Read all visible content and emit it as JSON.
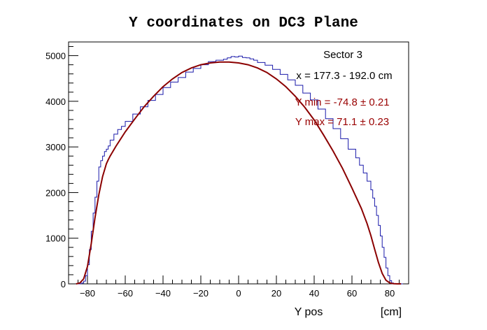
{
  "chart_data": {
    "type": "line",
    "title": "Y coordinates on DC3 Plane",
    "xlabel": "Y pos",
    "xunit": "[cm]",
    "ylabel": "",
    "xlim": [
      -90,
      90
    ],
    "ylim": [
      0,
      5300
    ],
    "x_ticks": [
      -80,
      -60,
      -40,
      -20,
      0,
      20,
      40,
      60,
      80
    ],
    "y_ticks": [
      0,
      1000,
      2000,
      3000,
      4000,
      5000
    ],
    "grid": false,
    "annotations": {
      "sector": "Sector 3",
      "x_range": "x = 177.3 - 192.0 cm",
      "ymin": "Y min = -74.8  ± 0.21",
      "ymax": "Y max = 71.1  ± 0.23"
    },
    "colors": {
      "histogram": "#1a1aaa",
      "fit": "#8b0000",
      "ymin_text": "#990000",
      "ymax_text": "#990000"
    },
    "series": [
      {
        "type": "histogram",
        "x": [
          -86,
          -85,
          -84,
          -83,
          -82,
          -81,
          -80,
          -79,
          -78,
          -77,
          -76,
          -75,
          -74,
          -73,
          -72,
          -71,
          -70,
          -69,
          -68,
          -66,
          -64,
          -62,
          -60,
          -56,
          -52,
          -48,
          -44,
          -40,
          -36,
          -32,
          -28,
          -24,
          -20,
          -16,
          -12,
          -8,
          -6,
          -4,
          -2,
          0,
          2,
          4,
          6,
          8,
          10,
          14,
          18,
          22,
          26,
          30,
          34,
          38,
          42,
          46,
          50,
          54,
          58,
          62,
          64,
          66,
          68,
          70,
          71,
          72,
          73,
          74,
          75,
          76,
          77,
          78,
          79,
          80,
          81,
          82,
          83,
          84,
          85,
          86
        ],
        "values": [
          0,
          0,
          5,
          20,
          60,
          180,
          420,
          750,
          1150,
          1550,
          1900,
          2250,
          2560,
          2700,
          2800,
          2900,
          2950,
          3020,
          3150,
          3280,
          3380,
          3450,
          3560,
          3720,
          3880,
          4020,
          4150,
          4300,
          4420,
          4520,
          4640,
          4720,
          4800,
          4870,
          4900,
          4920,
          4950,
          4980,
          4970,
          4990,
          4960,
          4950,
          4930,
          4900,
          4850,
          4790,
          4700,
          4590,
          4470,
          4350,
          4180,
          4030,
          3830,
          3620,
          3400,
          3180,
          2950,
          2760,
          2600,
          2430,
          2250,
          2060,
          1880,
          1700,
          1500,
          1280,
          1050,
          800,
          580,
          350,
          180,
          70,
          20,
          5,
          0,
          0,
          0,
          0
        ]
      },
      {
        "type": "fit",
        "x": [
          -86,
          -84,
          -82,
          -80,
          -78,
          -76,
          -74,
          -72,
          -70,
          -69,
          -68,
          -65,
          -60,
          -55,
          -50,
          -45,
          -40,
          -35,
          -30,
          -25,
          -20,
          -15,
          -10,
          -5,
          0,
          5,
          10,
          15,
          20,
          25,
          30,
          35,
          40,
          45,
          50,
          55,
          60,
          65,
          68,
          70,
          72,
          74,
          76,
          78,
          80,
          82,
          84,
          86
        ],
        "values": [
          0,
          20,
          110,
          380,
          880,
          1450,
          1950,
          2350,
          2630,
          2720,
          2800,
          3010,
          3330,
          3610,
          3880,
          4110,
          4320,
          4490,
          4630,
          4730,
          4800,
          4840,
          4860,
          4860,
          4840,
          4800,
          4730,
          4630,
          4490,
          4320,
          4110,
          3870,
          3590,
          3260,
          2910,
          2530,
          2100,
          1650,
          1320,
          1060,
          760,
          470,
          230,
          80,
          20,
          5,
          0,
          0
        ]
      }
    ]
  }
}
